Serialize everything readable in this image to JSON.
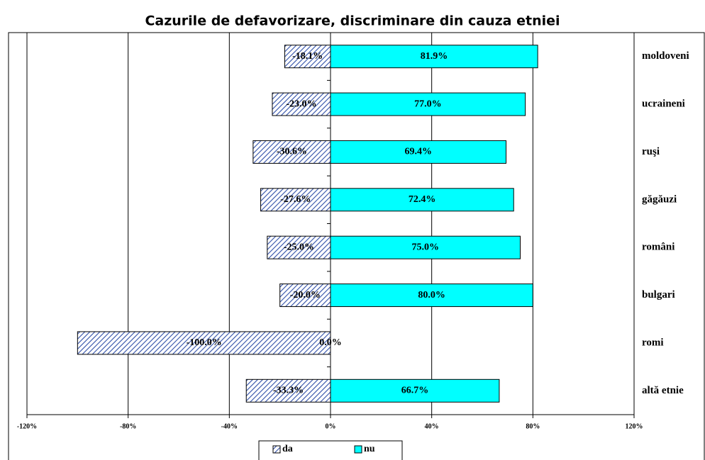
{
  "chart_data": {
    "type": "bar",
    "orientation": "horizontal",
    "title": "Cazurile de defavorizare, discriminare din cauza etniei",
    "categories": [
      "moldoveni",
      "ucraineni",
      "ruşi",
      "găgăuzi",
      "români",
      "bulgari",
      "romi",
      "altă etnie"
    ],
    "series": [
      {
        "name": "da",
        "color": "#2f4fa8",
        "pattern": "hatch",
        "values": [
          -18.1,
          -23.0,
          -30.6,
          -27.6,
          -25.0,
          -20.0,
          -100.0,
          -33.3
        ],
        "value_labels": [
          "-18.1%",
          "-23.0%",
          "-30.6%",
          "-27.6%",
          "-25.0%",
          "-20.0%",
          "-100.0%",
          "-33.3%"
        ]
      },
      {
        "name": "nu",
        "color": "#00ffff",
        "values": [
          81.9,
          77.0,
          69.4,
          72.4,
          75.0,
          80.0,
          0.0,
          66.7
        ],
        "value_labels": [
          "81.9%",
          "77.0%",
          "69.4%",
          "72.4%",
          "75.0%",
          "80.0%",
          "0.0%",
          "66.7%"
        ]
      }
    ],
    "xlim": [
      -120,
      120
    ],
    "xticks": [
      {
        "value": -120,
        "label": "-120%"
      },
      {
        "value": -80,
        "label": "-80%"
      },
      {
        "value": -40,
        "label": "-40%"
      },
      {
        "value": 0,
        "label": "0%"
      },
      {
        "value": 40,
        "label": "40%"
      },
      {
        "value": 80,
        "label": "80%"
      },
      {
        "value": 120,
        "label": "120%"
      }
    ],
    "grid": true,
    "legend": "bottom"
  }
}
